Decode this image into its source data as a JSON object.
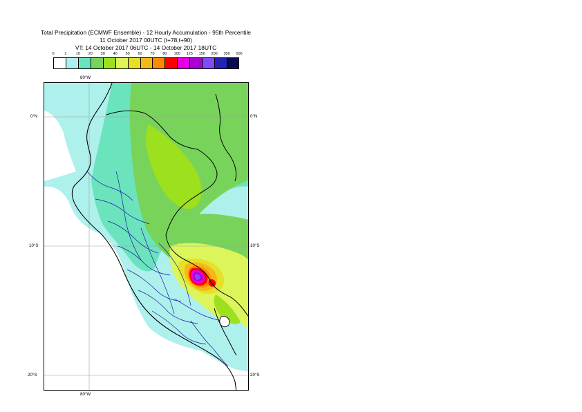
{
  "title": {
    "line1": "Total Precipitation (ECMWF Ensemble) - 12 Hourly Accumulation - 95th Percentile",
    "line2": "11 October 2017 00UTC (t+78,t+90)",
    "line3": "VT: 14 October 2017 06UTC - 14 October 2017 18UTC"
  },
  "legend": {
    "thresholds": [
      "0",
      "1",
      "10",
      "20",
      "30",
      "40",
      "50",
      "60",
      "70",
      "80",
      "100",
      "125",
      "150",
      "200",
      "300",
      "500"
    ],
    "colors": [
      "#ffffff",
      "#aef0ec",
      "#6be3bd",
      "#78d35a",
      "#9ce01e",
      "#dcf55a",
      "#e6e028",
      "#f5b81b",
      "#ff8a00",
      "#ff0000",
      "#e600e6",
      "#aa00d2",
      "#7f4bf7",
      "#2323b8",
      "#0a0a50"
    ]
  },
  "map": {
    "lon_labels": {
      "top": "80°W",
      "bottom": "80°W"
    },
    "lat_labels": {
      "eq_left": "0°N",
      "eq_right": "0°N",
      "ten_left": "10°S",
      "ten_right": "10°S",
      "twenty_left": "20°S",
      "twenty_right": "20°S"
    },
    "colors": {
      "ocean_light": "#aef0ec",
      "teal": "#6be3bd",
      "green": "#78d35a",
      "lime": "#9ce01e",
      "yellow": "#dcf55a",
      "gold": "#e6e028",
      "orange": "#f5b81b",
      "dark_orange": "#ff8a00",
      "red": "#ff0000",
      "magenta": "#e600e6",
      "purple": "#aa00d2",
      "violet": "#7f4bf7",
      "land": "#ffffff",
      "coast": "#000000",
      "regions": "#1a1aa0",
      "grid": "#a0a0a0"
    }
  }
}
